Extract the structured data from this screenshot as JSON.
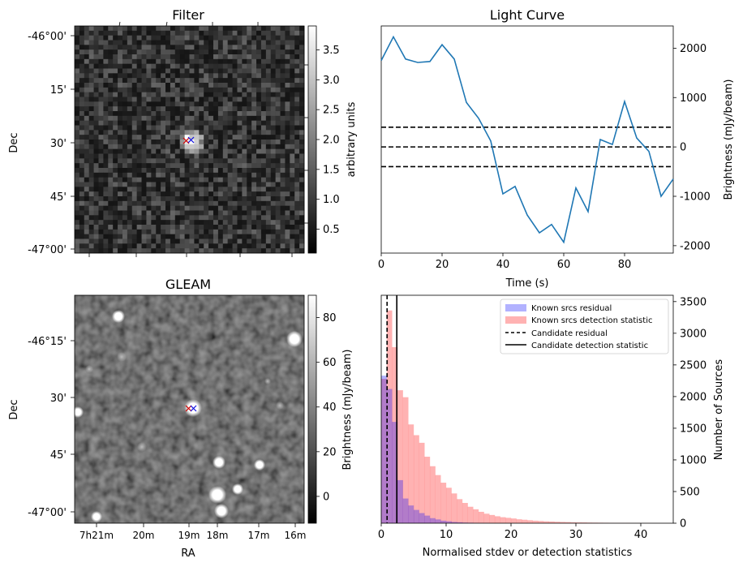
{
  "chart_data": [
    {
      "type": "heatmap",
      "title": "Filter",
      "ylabel": "Dec",
      "y_ticks": [
        "-46°00'",
        "15'",
        "30'",
        "45'",
        "-47°00'"
      ],
      "colorbar": {
        "label": "arbitrary units",
        "ticks": [
          "0.5",
          "1.0",
          "1.5",
          "2.0",
          "2.5",
          "3.0",
          "3.5"
        ],
        "range": [
          0.1,
          3.9
        ]
      },
      "grid_size": 48,
      "markers": [
        {
          "symbol": "x",
          "color": "#d00000",
          "dec_frac": 0.5,
          "ra_frac": 0.5
        },
        {
          "symbol": "x",
          "color": "#1010e0",
          "dec_frac": 0.5,
          "ra_frac": 0.52
        }
      ]
    },
    {
      "type": "line",
      "title": "Light Curve",
      "xlabel": "Time (s)",
      "ylabel": "Brightness (mJy/beam)",
      "x_ticks": [
        "0",
        "20",
        "40",
        "60",
        "80"
      ],
      "y_ticks": [
        "-2000",
        "-1000",
        "0",
        "1000",
        "2000"
      ],
      "xlim": [
        0,
        96
      ],
      "ylim": [
        -2150,
        2450
      ],
      "series": [
        {
          "color": "#1f77b4",
          "x": [
            0,
            4,
            8,
            12,
            16,
            20,
            24,
            28,
            32,
            36,
            40,
            44,
            48,
            52,
            56,
            60,
            64,
            68,
            72,
            76,
            80,
            84,
            88,
            92,
            96
          ],
          "y": [
            1750,
            2230,
            1780,
            1710,
            1730,
            2070,
            1780,
            900,
            580,
            120,
            -950,
            -800,
            -1380,
            -1740,
            -1570,
            -1930,
            -830,
            -1310,
            150,
            50,
            920,
            180,
            -90,
            -1000,
            -650
          ]
        }
      ],
      "hlines": [
        {
          "y": 400,
          "style": "dashed",
          "color": "#000000"
        },
        {
          "y": 0,
          "style": "dashed",
          "color": "#000000"
        },
        {
          "y": -400,
          "style": "dashed",
          "color": "#000000"
        }
      ]
    },
    {
      "type": "heatmap",
      "title": "GLEAM",
      "xlabel": "RA",
      "ylabel": "Dec",
      "x_ticks": [
        "7h21m",
        "20m",
        "19m",
        "18m",
        "17m",
        "16m"
      ],
      "y_ticks": [
        "-46°15'",
        "30'",
        "45'",
        "-47°00'"
      ],
      "colorbar": {
        "label": "Brightness (mJy/beam)",
        "ticks": [
          "0",
          "20",
          "40",
          "60",
          "80"
        ],
        "range": [
          -12,
          90
        ]
      },
      "markers": [
        {
          "symbol": "x",
          "color": "#d00000"
        },
        {
          "symbol": "x",
          "color": "#1010e0"
        }
      ]
    },
    {
      "type": "bar",
      "xlabel": "Normalised stdev or detection statistics",
      "ylabel": "Number of Sources",
      "x_ticks": [
        "0",
        "10",
        "20",
        "30",
        "40"
      ],
      "y_ticks": [
        "0",
        "500",
        "1000",
        "1500",
        "2000",
        "2500",
        "3000",
        "3500"
      ],
      "xlim": [
        0,
        45
      ],
      "ylim": [
        0,
        3600
      ],
      "bin_width": 0.833,
      "series": [
        {
          "name": "Known srcs residual",
          "color": "#0000ff",
          "alpha": 0.3,
          "values": [
            2330,
            2120,
            1600,
            680,
            390,
            280,
            210,
            160,
            120,
            80,
            60,
            40,
            30,
            20,
            15,
            10,
            8,
            5,
            3,
            2
          ]
        },
        {
          "name": "Known srcs detection statistic",
          "color": "#ff0000",
          "alpha": 0.3,
          "values": [
            2280,
            3360,
            2780,
            2100,
            1990,
            1560,
            1390,
            1270,
            1050,
            900,
            760,
            640,
            560,
            470,
            380,
            320,
            260,
            220,
            180,
            150,
            130,
            110,
            95,
            85,
            75,
            62,
            55,
            47,
            40,
            35,
            30,
            27,
            23,
            20,
            18,
            15,
            13,
            12,
            10,
            9,
            8,
            7,
            6,
            5,
            4,
            4,
            3,
            3,
            2,
            2,
            2,
            1,
            1,
            1
          ]
        }
      ],
      "vlines": [
        {
          "name": "Candidate residual",
          "x": 0.9,
          "style": "dashed",
          "color": "#000000"
        },
        {
          "name": "Candidate detection statistic",
          "x": 2.4,
          "style": "solid",
          "color": "#000000"
        }
      ],
      "legend_placement": "top-right"
    }
  ]
}
